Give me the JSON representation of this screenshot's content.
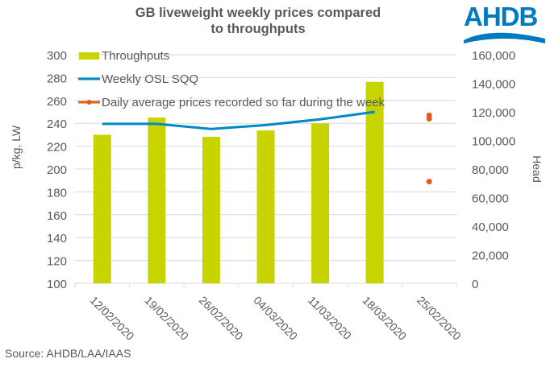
{
  "header": {
    "title_line1": "GB liveweight weekly prices compared",
    "title_line2": "to throughputs",
    "logo_text": "AHDB"
  },
  "source": "Source: AHDB/LAA/IAAS",
  "colors": {
    "throughputs": "#c8d400",
    "weekly_osl": "#0088c8",
    "daily_avg": "#e05c1a",
    "grid": "#d9d9d9",
    "text": "#595959",
    "logo": "#0079c1"
  },
  "chart_data": {
    "type": "bar",
    "title": "GB liveweight weekly prices compared to throughputs",
    "categories": [
      "12/02/2020",
      "19/02/2020",
      "26/02/2020",
      "04/03/2020",
      "11/03/2020",
      "18/03/2020",
      "25/02/2020"
    ],
    "ylabel": "p/kg, LW",
    "y2label": "Head",
    "ylim": [
      100,
      300
    ],
    "y2lim": [
      0,
      160000
    ],
    "yticks": [
      "100",
      "120",
      "140",
      "160",
      "180",
      "200",
      "220",
      "240",
      "260",
      "280",
      "300"
    ],
    "y2ticks": [
      "0",
      "20,000",
      "40,000",
      "60,000",
      "80,000",
      "100,000",
      "120,000",
      "140,000",
      "160,000"
    ],
    "grid": true,
    "legend_position": "top-left",
    "series": [
      {
        "name": "Throughputs",
        "type": "bar",
        "axis": "right",
        "values": [
          104000,
          116000,
          102500,
          107000,
          112000,
          141000,
          null
        ]
      },
      {
        "name": "Weekly OSL SQQ",
        "type": "line",
        "axis": "left",
        "values": [
          239.5,
          239.5,
          235,
          238.5,
          243.5,
          250,
          null
        ]
      },
      {
        "name": "Daily average prices recorded so far during the week",
        "type": "scatter",
        "axis": "left",
        "category": "25/02/2020",
        "values": [
          247,
          244,
          189
        ]
      }
    ]
  }
}
